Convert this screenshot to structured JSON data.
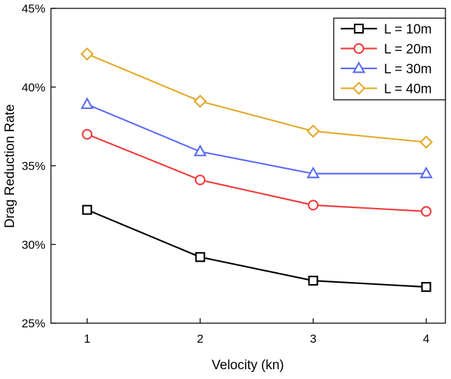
{
  "chart_data": {
    "type": "line",
    "title": "",
    "xlabel": "Velocity (kn)",
    "ylabel": "Drag Reduction Rate",
    "x": [
      1,
      2,
      3,
      4
    ],
    "xlim": [
      0.68,
      4.17
    ],
    "ylim": [
      25,
      45
    ],
    "xticks": [
      1,
      2,
      3,
      4
    ],
    "xtick_labels": [
      "1",
      "2",
      "3",
      "4"
    ],
    "yticks": [
      25,
      30,
      35,
      40,
      45
    ],
    "ytick_labels": [
      "25%",
      "30%",
      "35%",
      "40%",
      "45%"
    ],
    "grid": false,
    "legend_position": "top-right",
    "series": [
      {
        "name": "L = 10m",
        "color": "#000000",
        "marker": "square",
        "values": [
          32.2,
          29.2,
          27.7,
          27.3
        ]
      },
      {
        "name": "L = 20m",
        "color": "#f03c3c",
        "marker": "circle",
        "values": [
          37.0,
          34.1,
          32.5,
          32.1
        ]
      },
      {
        "name": "L = 30m",
        "color": "#5a6cf5",
        "marker": "triangle",
        "values": [
          38.9,
          35.9,
          34.5,
          34.5
        ]
      },
      {
        "name": "L = 40m",
        "color": "#e3a92a",
        "marker": "diamond",
        "values": [
          42.1,
          39.1,
          37.2,
          36.5
        ]
      }
    ]
  }
}
